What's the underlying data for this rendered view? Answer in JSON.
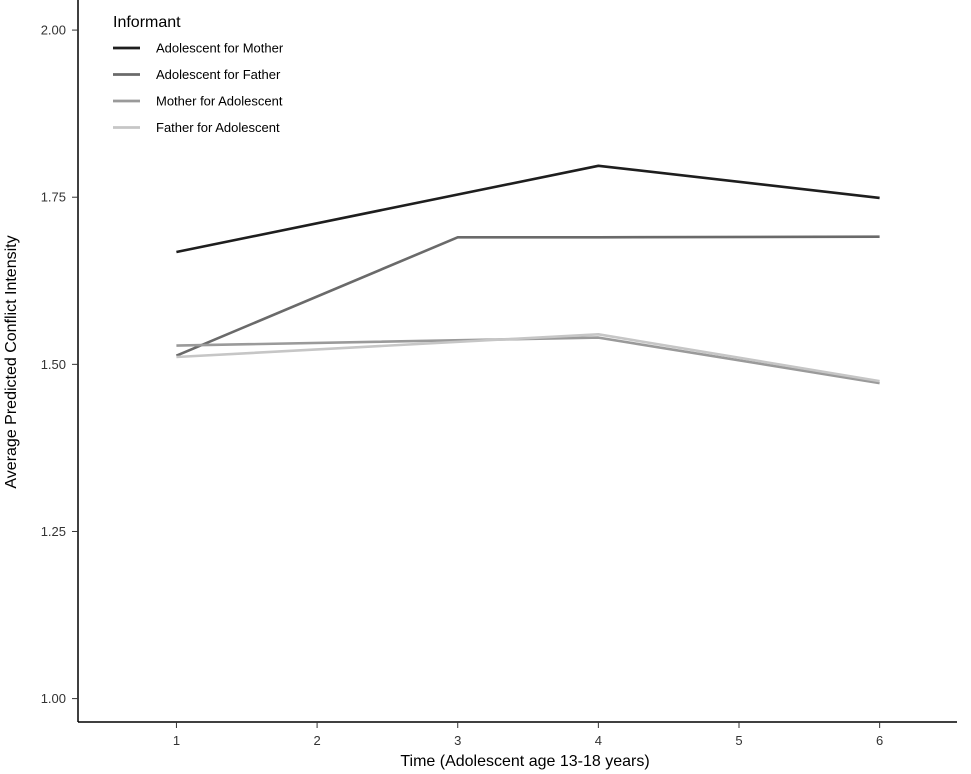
{
  "chart_data": {
    "type": "line",
    "xlabel": "Time (Adolescent age 13-18 years)",
    "ylabel": "Average Predicted Conflict Intensity",
    "x": [
      1,
      2,
      3,
      4,
      5,
      6
    ],
    "x_ticks": [
      "1",
      "2",
      "3",
      "4",
      "5",
      "6"
    ],
    "xlim": [
      0.3,
      6.55
    ],
    "ylim": [
      0.965,
      2.045
    ],
    "y_ticks": [
      "1.00",
      "1.25",
      "1.50",
      "1.75",
      "2.00"
    ],
    "y_tick_values": [
      1.0,
      1.25,
      1.5,
      1.75,
      2.0
    ],
    "grid": false,
    "legend": {
      "title": "Informant",
      "position": "top-left"
    },
    "series": [
      {
        "name": "Adolescent for Mother",
        "color": "#1e1e1e",
        "x": [
          1,
          4,
          6
        ],
        "values": [
          1.668,
          1.797,
          1.749
        ]
      },
      {
        "name": "Adolescent for Father",
        "color": "#6a6a6a",
        "x": [
          1,
          3,
          4,
          6
        ],
        "values": [
          1.513,
          1.69,
          1.69,
          1.691
        ]
      },
      {
        "name": "Mother for Adolescent",
        "color": "#9a9a9a",
        "x": [
          1,
          4,
          6
        ],
        "values": [
          1.528,
          1.54,
          1.472
        ]
      },
      {
        "name": "Father for Adolescent",
        "color": "#c6c6c6",
        "x": [
          1,
          4,
          6
        ],
        "values": [
          1.511,
          1.545,
          1.475
        ]
      }
    ]
  }
}
